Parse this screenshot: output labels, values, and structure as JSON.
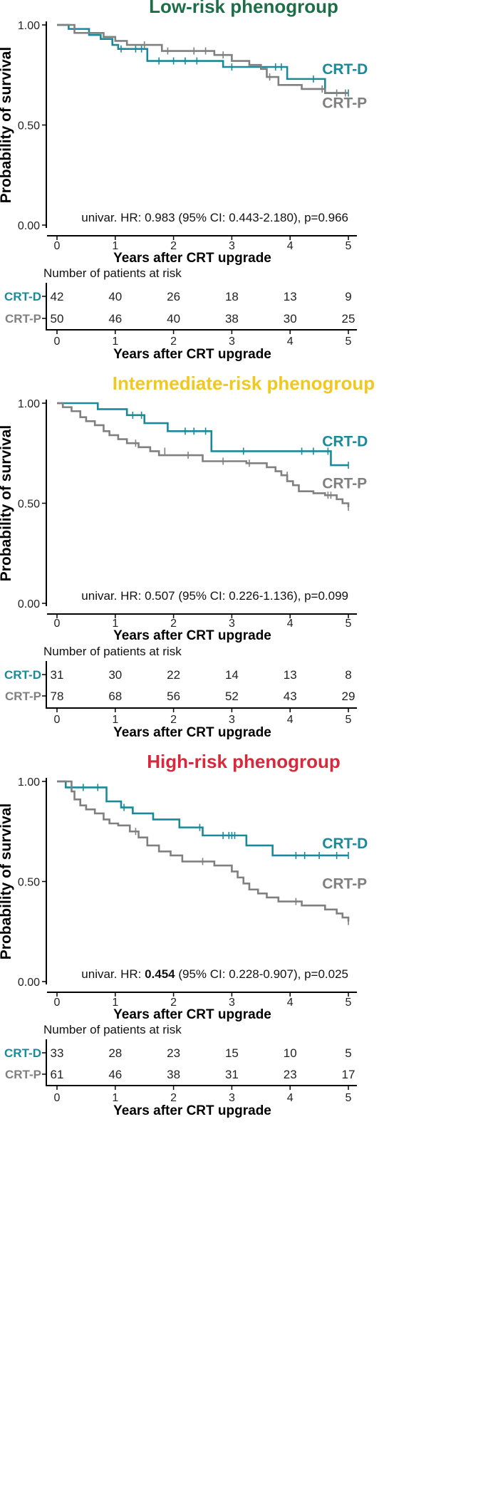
{
  "chart_data": [
    {
      "type": "line",
      "title": "Low-risk phenogroup",
      "title_color": "#1d6e48",
      "ylabel": "Probability of survival",
      "xlabel": "Years after CRT upgrade",
      "xlim": [
        0,
        5
      ],
      "ylim": [
        0,
        1
      ],
      "xticks": [
        "0",
        "1",
        "2",
        "3",
        "4",
        "5"
      ],
      "yticks": [
        "0.00",
        "0.50",
        "1.00"
      ],
      "hr_parts": [
        "univar. HR: ",
        "0.983",
        " (95% CI: 0.443-2.180), p=0.966"
      ],
      "hr_bold": false,
      "series": [
        {
          "name": "CRT-D",
          "color": "#1a8a9a",
          "x": [
            0,
            0.2,
            0.55,
            0.75,
            0.95,
            1.05,
            1.2,
            1.55,
            2.45,
            2.85,
            3.5,
            3.95,
            4.3,
            4.6,
            5.0
          ],
          "y": [
            1.0,
            0.98,
            0.95,
            0.93,
            0.9,
            0.88,
            0.88,
            0.82,
            0.82,
            0.79,
            0.79,
            0.73,
            0.73,
            0.66,
            0.66
          ],
          "censor": [
            [
              1.1,
              0.88
            ],
            [
              1.35,
              0.88
            ],
            [
              1.45,
              0.88
            ],
            [
              1.75,
              0.82
            ],
            [
              2.0,
              0.82
            ],
            [
              2.2,
              0.82
            ],
            [
              2.4,
              0.82
            ],
            [
              3.0,
              0.79
            ],
            [
              3.75,
              0.79
            ],
            [
              3.85,
              0.79
            ],
            [
              4.4,
              0.73
            ],
            [
              5.0,
              0.66
            ]
          ],
          "label_x": 4.55,
          "label_y": 0.78
        },
        {
          "name": "CRT-P",
          "color": "#808080",
          "x": [
            0,
            0.3,
            0.8,
            1.0,
            1.2,
            1.5,
            1.8,
            2.7,
            3.0,
            3.3,
            3.5,
            3.6,
            3.8,
            4.0,
            4.2,
            4.4,
            4.6,
            5.0
          ],
          "y": [
            1.0,
            0.96,
            0.94,
            0.92,
            0.9,
            0.9,
            0.87,
            0.85,
            0.82,
            0.8,
            0.78,
            0.74,
            0.7,
            0.7,
            0.68,
            0.68,
            0.66,
            0.66
          ],
          "censor": [
            [
              1.5,
              0.9
            ],
            [
              1.9,
              0.87
            ],
            [
              2.35,
              0.87
            ],
            [
              2.55,
              0.87
            ],
            [
              2.85,
              0.85
            ],
            [
              3.65,
              0.74
            ],
            [
              4.55,
              0.68
            ],
            [
              4.8,
              0.66
            ],
            [
              4.95,
              0.66
            ]
          ],
          "label_x": 4.55,
          "label_y": 0.61
        }
      ],
      "risk_table": {
        "title": "Number of patients at risk",
        "rows": [
          {
            "name": "CRT-D",
            "color": "#1a8a9a",
            "values": [
              "42",
              "40",
              "26",
              "18",
              "13",
              "9"
            ]
          },
          {
            "name": "CRT-P",
            "color": "#808080",
            "values": [
              "50",
              "46",
              "40",
              "38",
              "30",
              "25"
            ]
          }
        ],
        "xlabel": "Years after CRT upgrade"
      }
    },
    {
      "type": "line",
      "title": "Intermediate-risk phenogroup",
      "title_color": "#f0c820",
      "ylabel": "Probability of survival",
      "xlabel": "Years after CRT upgrade",
      "xlim": [
        0,
        5
      ],
      "ylim": [
        0,
        1
      ],
      "xticks": [
        "0",
        "1",
        "2",
        "3",
        "4",
        "5"
      ],
      "yticks": [
        "0.00",
        "0.50",
        "1.00"
      ],
      "hr_parts": [
        "univar. HR: ",
        "0.507",
        " (95% CI: 0.226-1.136), p=0.099"
      ],
      "hr_bold": false,
      "series": [
        {
          "name": "CRT-D",
          "color": "#1a8a9a",
          "x": [
            0,
            0.7,
            1.2,
            1.5,
            1.9,
            2.65,
            3.4,
            4.7,
            5.0
          ],
          "y": [
            1.0,
            0.97,
            0.94,
            0.9,
            0.86,
            0.76,
            0.76,
            0.69,
            0.69
          ],
          "censor": [
            [
              1.3,
              0.94
            ],
            [
              1.45,
              0.94
            ],
            [
              2.2,
              0.86
            ],
            [
              2.35,
              0.86
            ],
            [
              2.55,
              0.86
            ],
            [
              2.65,
              0.79
            ],
            [
              3.2,
              0.76
            ],
            [
              4.2,
              0.76
            ],
            [
              4.4,
              0.76
            ],
            [
              4.65,
              0.76
            ],
            [
              5.0,
              0.69
            ]
          ],
          "label_x": 4.55,
          "label_y": 0.81
        },
        {
          "name": "CRT-P",
          "color": "#808080",
          "x": [
            0,
            0.1,
            0.25,
            0.4,
            0.5,
            0.65,
            0.8,
            0.9,
            1.05,
            1.2,
            1.4,
            1.6,
            1.75,
            1.95,
            2.5,
            3.25,
            3.6,
            3.75,
            3.85,
            3.95,
            4.05,
            4.15,
            4.4,
            4.6,
            4.8,
            4.9,
            5.0
          ],
          "y": [
            1.0,
            0.98,
            0.96,
            0.93,
            0.91,
            0.89,
            0.86,
            0.84,
            0.82,
            0.8,
            0.78,
            0.76,
            0.74,
            0.74,
            0.71,
            0.7,
            0.68,
            0.66,
            0.64,
            0.61,
            0.59,
            0.56,
            0.55,
            0.54,
            0.52,
            0.5,
            0.48
          ],
          "censor": [
            [
              1.35,
              0.8
            ],
            [
              1.85,
              0.76
            ],
            [
              2.25,
              0.74
            ],
            [
              2.85,
              0.71
            ],
            [
              3.3,
              0.7
            ],
            [
              3.95,
              0.64
            ],
            [
              4.65,
              0.54
            ],
            [
              4.7,
              0.54
            ],
            [
              5.0,
              0.48
            ]
          ],
          "label_x": 4.55,
          "label_y": 0.6
        }
      ],
      "risk_table": {
        "title": "Number of patients at risk",
        "rows": [
          {
            "name": "CRT-D",
            "color": "#1a8a9a",
            "values": [
              "31",
              "30",
              "22",
              "14",
              "13",
              "8"
            ]
          },
          {
            "name": "CRT-P",
            "color": "#808080",
            "values": [
              "78",
              "68",
              "56",
              "52",
              "43",
              "29"
            ]
          }
        ],
        "xlabel": "Years after CRT upgrade"
      }
    },
    {
      "type": "line",
      "title": "High-risk phenogroup",
      "title_color": "#d8283c",
      "ylabel": "Probability of survival",
      "xlabel": "Years after CRT upgrade",
      "xlim": [
        0,
        5
      ],
      "ylim": [
        0,
        1
      ],
      "xticks": [
        "0",
        "1",
        "2",
        "3",
        "4",
        "5"
      ],
      "yticks": [
        "0.00",
        "0.50",
        "1.00"
      ],
      "hr_parts": [
        "univar. HR: ",
        "0.454",
        " (95% CI: 0.228-0.907), p=0.025"
      ],
      "hr_bold": true,
      "series": [
        {
          "name": "CRT-D",
          "color": "#1a8a9a",
          "x": [
            0,
            0.15,
            0.85,
            1.1,
            1.3,
            1.65,
            2.1,
            2.5,
            3.25,
            3.7,
            5.0
          ],
          "y": [
            1.0,
            0.97,
            0.9,
            0.87,
            0.84,
            0.81,
            0.77,
            0.73,
            0.68,
            0.63,
            0.63
          ],
          "censor": [
            [
              0.45,
              0.97
            ],
            [
              0.7,
              0.97
            ],
            [
              1.15,
              0.87
            ],
            [
              2.45,
              0.77
            ],
            [
              2.85,
              0.73
            ],
            [
              2.95,
              0.73
            ],
            [
              3.0,
              0.73
            ],
            [
              3.05,
              0.73
            ],
            [
              4.1,
              0.63
            ],
            [
              4.25,
              0.63
            ],
            [
              4.5,
              0.63
            ],
            [
              4.8,
              0.63
            ],
            [
              5.0,
              0.63
            ]
          ],
          "label_x": 4.55,
          "label_y": 0.69
        },
        {
          "name": "CRT-P",
          "color": "#808080",
          "x": [
            0,
            0.25,
            0.3,
            0.4,
            0.5,
            0.65,
            0.8,
            0.9,
            1.05,
            1.25,
            1.4,
            1.55,
            1.75,
            1.95,
            2.15,
            2.7,
            3.0,
            3.1,
            3.2,
            3.3,
            3.45,
            3.6,
            3.8,
            4.2,
            4.6,
            4.8,
            4.9,
            5.0
          ],
          "y": [
            1.0,
            0.95,
            0.91,
            0.88,
            0.86,
            0.84,
            0.81,
            0.79,
            0.78,
            0.75,
            0.72,
            0.68,
            0.65,
            0.63,
            0.6,
            0.58,
            0.55,
            0.52,
            0.49,
            0.46,
            0.44,
            0.42,
            0.4,
            0.38,
            0.36,
            0.34,
            0.32,
            0.3
          ],
          "censor": [
            [
              1.35,
              0.75
            ],
            [
              2.5,
              0.6
            ],
            [
              4.1,
              0.4
            ],
            [
              5.0,
              0.3
            ]
          ],
          "label_x": 4.55,
          "label_y": 0.49
        }
      ],
      "risk_table": {
        "title": "Number of patients at risk",
        "rows": [
          {
            "name": "CRT-D",
            "color": "#1a8a9a",
            "values": [
              "33",
              "28",
              "23",
              "15",
              "10",
              "5"
            ]
          },
          {
            "name": "CRT-P",
            "color": "#808080",
            "values": [
              "61",
              "46",
              "38",
              "31",
              "23",
              "17"
            ]
          }
        ],
        "xlabel": "Years after CRT upgrade"
      }
    }
  ]
}
